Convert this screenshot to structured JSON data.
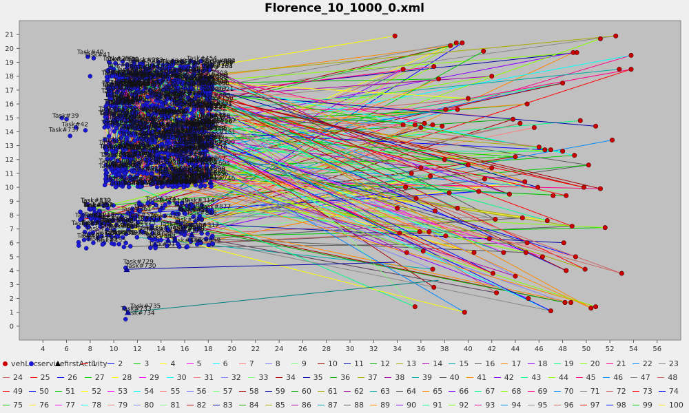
{
  "chart_data": {
    "type": "scatter",
    "title": "Florence_10_1000_0.xml",
    "xlabel": "",
    "ylabel": "",
    "xlim": [
      2,
      58
    ],
    "ylim": [
      -1,
      22
    ],
    "xticks": [
      4,
      6,
      8,
      10,
      12,
      14,
      16,
      18,
      20,
      22,
      24,
      26,
      28,
      30,
      32,
      34,
      36,
      38,
      40,
      42,
      44,
      46,
      48,
      50,
      52,
      54,
      56
    ],
    "yticks": [
      0,
      1,
      2,
      3,
      4,
      5,
      6,
      7,
      8,
      9,
      10,
      11,
      12,
      13,
      14,
      15,
      16,
      17,
      18,
      19,
      20,
      21
    ],
    "grid": false,
    "legend_position": "bottom",
    "colors": {
      "plot_background": "#c0c0c0",
      "vehLoc": "#cc0000",
      "service": "#1a1ad6",
      "firstActivity": "#0a0a99"
    },
    "series": [
      {
        "name": "vehLoc",
        "marker": "circle",
        "x": [
          33.8,
          38.5,
          39.0,
          39.5,
          49.2,
          48.9,
          53.8,
          52.5,
          51.2,
          52.8,
          53.8,
          41.3,
          34.5,
          37.5,
          37.1,
          42.0,
          48.0,
          40.0,
          45.0,
          38.1,
          39.1,
          43.8,
          44.4,
          36.0,
          45.6,
          34.5,
          35.5,
          36.3,
          37.0,
          37.8,
          49.5,
          50.8,
          52.2,
          38.0,
          46.5,
          47.0,
          49.0,
          50.2,
          36.0,
          40.0,
          42.0,
          44.0,
          46.0,
          48.0,
          35.2,
          36.8,
          41.4,
          44.8,
          45.9,
          49.8,
          51.2,
          34.7,
          35.6,
          38.4,
          40.9,
          43.5,
          47.2,
          48.3,
          34.0,
          37.2,
          39.1,
          42.3,
          44.6,
          46.7,
          48.8,
          51.6,
          34.2,
          35.9,
          36.7,
          38.1,
          41.8,
          45.0,
          48.1,
          34.8,
          36.2,
          40.5,
          43.0,
          44.9,
          46.3,
          49.1,
          37.0,
          42.1,
          44.0,
          48.3,
          49.9,
          53.0,
          37.1,
          42.4,
          45.1,
          48.2,
          48.7,
          50.4,
          35.5,
          39.7,
          47.0,
          50.8
        ],
        "y": [
          20.9,
          20.2,
          20.4,
          20.4,
          19.7,
          19.7,
          19.5,
          20.9,
          20.7,
          18.5,
          18.5,
          19.8,
          18.5,
          17.8,
          18.7,
          18.0,
          17.5,
          16.4,
          16.0,
          15.6,
          15.6,
          14.9,
          14.6,
          14.3,
          14.3,
          14.5,
          14.5,
          14.6,
          14.5,
          14.4,
          14.8,
          14.4,
          13.4,
          12.0,
          12.7,
          12.7,
          12.3,
          11.6,
          11.4,
          11.6,
          11.4,
          12.2,
          12.9,
          12.6,
          11.0,
          10.8,
          10.6,
          10.4,
          10.0,
          10.0,
          9.9,
          10.0,
          9.2,
          9.6,
          9.7,
          9.5,
          9.4,
          9.4,
          8.5,
          8.3,
          8.5,
          7.7,
          7.8,
          7.6,
          7.2,
          7.1,
          6.7,
          6.8,
          6.8,
          6.5,
          6.3,
          6.0,
          6.0,
          5.3,
          5.4,
          5.3,
          5.3,
          5.3,
          5.0,
          5.0,
          4.1,
          3.8,
          3.6,
          4.0,
          4.1,
          3.8,
          2.8,
          2.4,
          2.0,
          1.7,
          1.7,
          1.3,
          1.4,
          1.0,
          1.1,
          1.4
        ]
      },
      {
        "name": "service",
        "marker": "circle"
      },
      {
        "name": "firstActivity",
        "marker": "triangle",
        "x": [
          11.1,
          13.5,
          14.6,
          15.2,
          16.6,
          18.2,
          11.2
        ],
        "y": [
          4.1,
          5.9,
          6.2,
          6.2,
          6.6,
          10.4,
          1.0
        ]
      }
    ],
    "annotations": [
      "Task#40",
      "Task#41",
      "Task#39",
      "Task#42",
      "Task#737",
      "Task#729",
      "Task#730",
      "Task#735",
      "Task#734",
      "Task#733",
      "Task#746",
      "Task#176"
    ],
    "legend": [
      "vehLoc",
      "service",
      "firstActivity",
      "1",
      "2",
      "3",
      "4",
      "5",
      "6",
      "7",
      "8",
      "9",
      "10",
      "11",
      "12",
      "13",
      "14",
      "15",
      "16",
      "17",
      "18",
      "19",
      "20",
      "21",
      "22",
      "23",
      "24",
      "25",
      "26",
      "27",
      "28",
      "29",
      "30",
      "31",
      "32",
      "33",
      "34",
      "35",
      "36",
      "37",
      "38",
      "39",
      "40",
      "41",
      "42",
      "43",
      "44",
      "45",
      "46",
      "47",
      "48",
      "49",
      "50",
      "51",
      "52",
      "53",
      "54",
      "55",
      "56",
      "57",
      "58",
      "59",
      "60",
      "61",
      "62",
      "63",
      "64",
      "65",
      "66",
      "67",
      "68",
      "69",
      "70",
      "71",
      "72",
      "73",
      "74",
      "75",
      "76",
      "77",
      "78",
      "79",
      "80",
      "81",
      "82",
      "83",
      "84",
      "85",
      "86",
      "87",
      "88",
      "89",
      "90",
      "91",
      "92",
      "93",
      "94",
      "95",
      "96",
      "97",
      "98",
      "99",
      "100"
    ],
    "route_colors": [
      "#ff0000",
      "#0000ff",
      "#00cc00",
      "#ffff00",
      "#ff00ff",
      "#00ffff",
      "#ff8080",
      "#8080ff",
      "#80ff80",
      "#aa0000",
      "#0000aa",
      "#00aa00",
      "#aaaa00",
      "#aa00aa",
      "#00aaaa",
      "#555555",
      "#ff8800",
      "#8800ff",
      "#00ff88",
      "#88ff00",
      "#ff0088",
      "#0088ff",
      "#888888",
      "#cc6666"
    ]
  }
}
